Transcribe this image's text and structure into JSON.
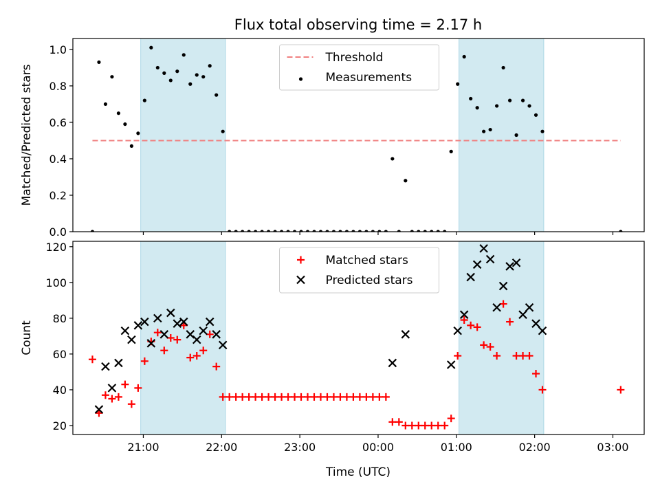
{
  "figure": {
    "title": "Flux total observing time = 2.17 h",
    "xlabel": "Time (UTC)"
  },
  "colors": {
    "shade": "#add8e6",
    "threshold": "#f08080",
    "matched": "#ff0000",
    "predicted": "#000000",
    "measurement": "#000000"
  },
  "chart_data": [
    {
      "type": "scatter",
      "ylabel": "Matched/Predicted stars",
      "ylim": [
        0,
        1.06
      ],
      "yticks": [
        0.0,
        0.2,
        0.4,
        0.6,
        0.8,
        1.0
      ],
      "xlim": [
        "20:06",
        "03:24"
      ],
      "xticks": [
        "21:00",
        "22:00",
        "23:00",
        "00:00",
        "01:00",
        "02:00",
        "03:00"
      ],
      "show_xticklabels": false,
      "shaded_spans": [
        [
          "20:58",
          "22:03"
        ],
        [
          "01:02",
          "02:07"
        ]
      ],
      "legend_position": "upper center",
      "threshold": {
        "name": "Threshold",
        "value": 0.5,
        "x": [
          "20:21",
          "03:06"
        ]
      },
      "series": [
        {
          "name": "Measurements",
          "marker": "dot",
          "x": [
            "20:21",
            "20:26",
            "20:31",
            "20:36",
            "20:41",
            "20:46",
            "20:51",
            "20:56",
            "21:01",
            "21:06",
            "21:11",
            "21:16",
            "21:21",
            "21:26",
            "21:31",
            "21:36",
            "21:41",
            "21:46",
            "21:51",
            "21:56",
            "22:01",
            "22:06",
            "22:11",
            "22:16",
            "22:21",
            "22:26",
            "22:31",
            "22:36",
            "22:41",
            "22:46",
            "22:51",
            "22:56",
            "23:01",
            "23:06",
            "23:11",
            "23:16",
            "23:21",
            "23:26",
            "23:31",
            "23:36",
            "23:41",
            "23:46",
            "23:51",
            "23:56",
            "00:01",
            "00:06",
            "00:11",
            "00:16",
            "00:21",
            "00:26",
            "00:31",
            "00:36",
            "00:41",
            "00:46",
            "00:51",
            "00:56",
            "01:01",
            "01:06",
            "01:11",
            "01:16",
            "01:21",
            "01:26",
            "01:31",
            "01:36",
            "01:41",
            "01:46",
            "01:51",
            "01:56",
            "02:01",
            "02:06",
            "03:06"
          ],
          "y": [
            0.0,
            0.93,
            0.7,
            0.85,
            0.65,
            0.59,
            0.47,
            0.54,
            0.72,
            1.01,
            0.9,
            0.87,
            0.83,
            0.88,
            0.97,
            0.81,
            0.86,
            0.85,
            0.91,
            0.75,
            0.55,
            0,
            0,
            0,
            0,
            0,
            0,
            0,
            0,
            0,
            0,
            0,
            0,
            0,
            0,
            0,
            0,
            0,
            0,
            0,
            0,
            0,
            0,
            0,
            0,
            0,
            0.4,
            0.0,
            0.28,
            0,
            0,
            0,
            0,
            0,
            0,
            0.44,
            0.81,
            0.96,
            0.73,
            0.68,
            0.55,
            0.56,
            0.69,
            0.9,
            0.72,
            0.53,
            0.72,
            0.69,
            0.64,
            0.55,
            0.0
          ]
        }
      ]
    },
    {
      "type": "scatter",
      "ylabel": "Count",
      "ylim": [
        15,
        123
      ],
      "yticks": [
        20,
        40,
        60,
        80,
        100,
        120
      ],
      "xlim": [
        "20:06",
        "03:24"
      ],
      "xticks": [
        "21:00",
        "22:00",
        "23:00",
        "00:00",
        "01:00",
        "02:00",
        "03:00"
      ],
      "show_xticklabels": true,
      "shaded_spans": [
        [
          "20:58",
          "22:03"
        ],
        [
          "01:02",
          "02:07"
        ]
      ],
      "legend_position": "upper center",
      "series": [
        {
          "name": "Matched stars",
          "marker": "plus",
          "x": [
            "20:21",
            "20:26",
            "20:31",
            "20:36",
            "20:41",
            "20:46",
            "20:51",
            "20:56",
            "21:01",
            "21:06",
            "21:11",
            "21:16",
            "21:21",
            "21:26",
            "21:31",
            "21:36",
            "21:41",
            "21:46",
            "21:51",
            "21:56",
            "22:01",
            "22:06",
            "22:11",
            "22:16",
            "22:21",
            "22:26",
            "22:31",
            "22:36",
            "22:41",
            "22:46",
            "22:51",
            "22:56",
            "23:01",
            "23:06",
            "23:11",
            "23:16",
            "23:21",
            "23:26",
            "23:31",
            "23:36",
            "23:41",
            "23:46",
            "23:51",
            "23:56",
            "00:01",
            "00:06",
            "00:11",
            "00:16",
            "00:21",
            "00:26",
            "00:31",
            "00:36",
            "00:41",
            "00:46",
            "00:51",
            "00:56",
            "01:01",
            "01:06",
            "01:11",
            "01:16",
            "01:21",
            "01:26",
            "01:31",
            "01:36",
            "01:41",
            "01:46",
            "01:51",
            "01:56",
            "02:01",
            "02:06",
            "03:06"
          ],
          "y": [
            57,
            27,
            37,
            35,
            36,
            43,
            32,
            41,
            56,
            67,
            72,
            62,
            69,
            68,
            76,
            58,
            59,
            62,
            71,
            53,
            36,
            36,
            36,
            36,
            36,
            36,
            36,
            36,
            36,
            36,
            36,
            36,
            36,
            36,
            36,
            36,
            36,
            36,
            36,
            36,
            36,
            36,
            36,
            36,
            36,
            36,
            22,
            22,
            20,
            20,
            20,
            20,
            20,
            20,
            20,
            24,
            59,
            79,
            76,
            75,
            65,
            64,
            59,
            88,
            78,
            59,
            59,
            59,
            49,
            40,
            40
          ]
        },
        {
          "name": "Predicted stars",
          "marker": "x",
          "x": [
            "20:26",
            "20:31",
            "20:36",
            "20:41",
            "20:46",
            "20:51",
            "20:56",
            "21:01",
            "21:06",
            "21:11",
            "21:16",
            "21:21",
            "21:26",
            "21:31",
            "21:36",
            "21:41",
            "21:46",
            "21:51",
            "21:56",
            "22:01",
            "00:11",
            "00:21",
            "00:56",
            "01:01",
            "01:06",
            "01:11",
            "01:16",
            "01:21",
            "01:26",
            "01:31",
            "01:36",
            "01:41",
            "01:46",
            "01:51",
            "01:56",
            "02:01",
            "02:06"
          ],
          "y": [
            29,
            53,
            41,
            55,
            73,
            68,
            76,
            78,
            66,
            80,
            71,
            83,
            77,
            78,
            71,
            68,
            73,
            78,
            71,
            65,
            55,
            71,
            54,
            73,
            82,
            103,
            110,
            119,
            113,
            86,
            98,
            109,
            111,
            82,
            86,
            77,
            73
          ]
        }
      ]
    }
  ]
}
